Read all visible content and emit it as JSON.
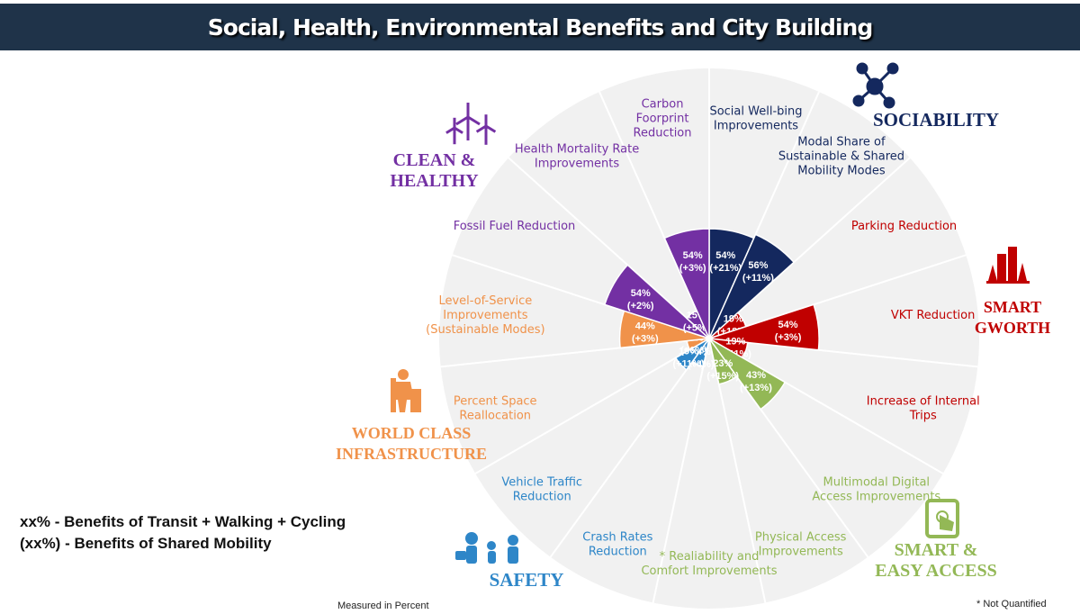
{
  "title": "Social, Health, Environmental Benefits and City Building",
  "colors": {
    "sociability": "#14285e",
    "smart_growth": "#c00000",
    "smart_easy_access": "#93b856",
    "safety": "#2e86c8",
    "world_class_infrastructure": "#f0924a",
    "clean_healthy": "#7330a3",
    "background_disc": "#f1f1f1"
  },
  "categories": {
    "sociability": {
      "label": "SOCIABILITY",
      "icon": "network-icon"
    },
    "smart_growth": {
      "label": "SMART\nGWORTH",
      "icon": "city-buildings-icon"
    },
    "smart_easy_access": {
      "label": "SMART &\nEASY ACCESS",
      "icon": "tablet-touch-icon"
    },
    "safety": {
      "label": "SAFETY",
      "icon": "family-pedestrians-icon"
    },
    "world_class_infrastructure": {
      "label": "WORLD CLASS\nINFRASTRUCTURE",
      "icon": "construction-worker-icon"
    },
    "clean_healthy": {
      "label": "CLEAN &\nHEALTHY",
      "icon": "wind-turbines-icon"
    }
  },
  "legend": {
    "line1": "xx% - Benefits of Transit + Walking + Cycling",
    "line2": "(xx%) - Benefits of Shared Mobility"
  },
  "footnotes": {
    "measured": "Measured in Percent",
    "not_quantified": "*  Not Quantified"
  },
  "chart_data": {
    "type": "polar-bar",
    "unit": "percent",
    "segments": [
      {
        "label": "Social Well-bing\nImprovements",
        "category": "sociability",
        "value": 54,
        "value_label": "54%",
        "shared_label": "(+21%)"
      },
      {
        "label": "Modal Share of\nSustainable & Shared\nMobility Modes",
        "category": "sociability",
        "value": 56,
        "value_label": "56%",
        "shared_label": "(+11%)"
      },
      {
        "label": "Parking Reduction",
        "category": "smart_growth",
        "value": 19,
        "value_label": "19%",
        "shared_label": "(+18%)"
      },
      {
        "label": "VKT Reduction",
        "category": "smart_growth",
        "value": 54,
        "value_label": "54%",
        "shared_label": "(+3%)"
      },
      {
        "label": "Increase of Internal\nTrips",
        "category": "smart_growth",
        "value": 19,
        "value_label": "19%",
        "shared_label": "(+11%)"
      },
      {
        "label": "Multimodal Digital\nAccess Improvements",
        "category": "smart_easy_access",
        "value": 43,
        "value_label": "43%",
        "shared_label": "(+13%)"
      },
      {
        "label": "Physical Access\nImprovements",
        "category": "smart_easy_access",
        "value": 23,
        "value_label": "23%",
        "shared_label": "(+15%)"
      },
      {
        "label": "* Realiability and\nComfort Improvements",
        "category": "smart_easy_access",
        "value": null,
        "value_label": "",
        "shared_label": ""
      },
      {
        "label": "Crash Rates\nReduction",
        "category": "safety",
        "value": 14,
        "value_label": "14%",
        "shared_label": "(+4%)"
      },
      {
        "label": "Vehicle Traffic\nReduction",
        "category": "safety",
        "value": 19,
        "value_label": "19%",
        "shared_label": "(+11%)"
      },
      {
        "label": "Percent Space\nReallocation",
        "category": "world_class_infrastructure",
        "value": 11,
        "value_label": "11%",
        "shared_label": "(+6%)"
      },
      {
        "label": "Level-of-Service\nImprovements\n(Sustainable Modes)",
        "category": "world_class_infrastructure",
        "value": 44,
        "value_label": "44%",
        "shared_label": "(+3%)"
      },
      {
        "label": "Fossil Fuel Reduction",
        "category": "clean_healthy",
        "value": 54,
        "value_label": "54%",
        "shared_label": "(+2%)"
      },
      {
        "label": "Health Mortality Rate\nImprovements",
        "category": "clean_healthy",
        "value": 15,
        "value_label": "15%",
        "shared_label": "(+5%)"
      },
      {
        "label": "Carbon\nFoorprint\nReduction",
        "category": "clean_healthy",
        "value": 54,
        "value_label": "54%",
        "shared_label": "(+3%)"
      }
    ]
  }
}
